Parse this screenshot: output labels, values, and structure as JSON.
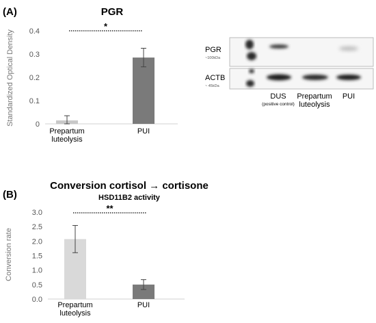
{
  "panel_a_label": "(A)",
  "panel_b_label": "(B)",
  "blot": {
    "rows": [
      {
        "name": "PGR",
        "size": "~100kDa"
      },
      {
        "name": "ACTB",
        "size": "~ 45kDa"
      }
    ],
    "lanes": [
      {
        "line1": "DUS",
        "line2": "(positive control)"
      },
      {
        "line1": "Prepartum",
        "line2": "luteolysis"
      },
      {
        "line1": "PUI",
        "line2": ""
      }
    ]
  },
  "chart_data": [
    {
      "type": "bar",
      "title": "PGR",
      "subtitle": "",
      "ylabel": "Standardized Optical Density",
      "xlabel": "",
      "categories": [
        "Prepartum luteolysis",
        "PUI"
      ],
      "category_lines": [
        [
          "Prepartum",
          "luteolysis"
        ],
        [
          "PUI"
        ]
      ],
      "values": [
        0.015,
        0.285
      ],
      "errors": [
        0.02,
        0.04
      ],
      "ylim": [
        0,
        0.4
      ],
      "yticks": [
        "0",
        "0.1",
        "0.2",
        "0.3",
        "0.4"
      ],
      "bar_colors": [
        "#c8c8c8",
        "#7a7a7a"
      ],
      "significance": "*"
    },
    {
      "type": "bar",
      "title": "Conversion cortisol → cortisone",
      "subtitle": "HSD11B2 activity",
      "ylabel": "Conversion rate",
      "xlabel": "",
      "categories": [
        "Prepartum luteolysis",
        "PUI"
      ],
      "category_lines": [
        [
          "Prepartum",
          "luteolysis"
        ],
        [
          "PUI"
        ]
      ],
      "values": [
        2.07,
        0.5
      ],
      "errors": [
        0.47,
        0.17
      ],
      "ylim": [
        0,
        3.0
      ],
      "yticks": [
        "0.0",
        "0.5",
        "1.0",
        "1.5",
        "2.0",
        "2.5",
        "3.0"
      ],
      "bar_colors": [
        "#d9d9d9",
        "#7a7a7a"
      ],
      "significance": "**"
    }
  ]
}
